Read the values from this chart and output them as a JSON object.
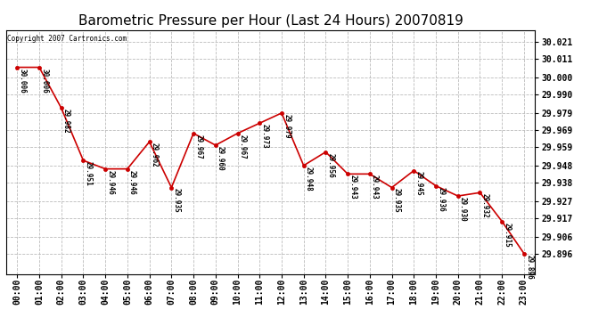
{
  "title": "Barometric Pressure per Hour (Last 24 Hours) 20070819",
  "copyright": "Copyright 2007 Cartronics.com",
  "hours": [
    "00:00",
    "01:00",
    "02:00",
    "03:00",
    "04:00",
    "05:00",
    "06:00",
    "07:00",
    "08:00",
    "09:00",
    "10:00",
    "11:00",
    "12:00",
    "13:00",
    "14:00",
    "15:00",
    "16:00",
    "17:00",
    "18:00",
    "19:00",
    "20:00",
    "21:00",
    "22:00",
    "23:00"
  ],
  "values": [
    30.006,
    30.006,
    29.982,
    29.951,
    29.946,
    29.946,
    29.962,
    29.935,
    29.967,
    29.96,
    29.967,
    29.973,
    29.979,
    29.948,
    29.956,
    29.943,
    29.943,
    29.935,
    29.945,
    29.936,
    29.93,
    29.932,
    29.915,
    29.896
  ],
  "yticks": [
    29.896,
    29.906,
    29.917,
    29.927,
    29.938,
    29.948,
    29.959,
    29.969,
    29.979,
    29.99,
    30.0,
    30.011,
    30.021
  ],
  "ylim_min": 29.884,
  "ylim_max": 30.028,
  "line_color": "#cc0000",
  "marker_color": "#cc0000",
  "bg_color": "#ffffff",
  "plot_bg_color": "#ffffff",
  "grid_color": "#bbbbbb",
  "title_fontsize": 11,
  "tick_fontsize": 7,
  "annotation_fontsize": 5.5,
  "copyright_fontsize": 5.5
}
